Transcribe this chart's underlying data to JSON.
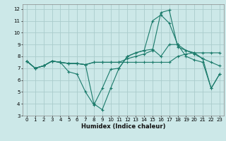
{
  "title": "",
  "xlabel": "Humidex (Indice chaleur)",
  "xlim": [
    -0.5,
    23.5
  ],
  "ylim": [
    3,
    12.4
  ],
  "yticks": [
    3,
    4,
    5,
    6,
    7,
    8,
    9,
    10,
    11,
    12
  ],
  "xticks": [
    0,
    1,
    2,
    3,
    4,
    5,
    6,
    7,
    8,
    9,
    10,
    11,
    12,
    13,
    14,
    15,
    16,
    17,
    18,
    19,
    20,
    21,
    22,
    23
  ],
  "bg_color": "#cce8e8",
  "grid_color": "#aacccc",
  "line_color": "#1a7a6a",
  "lines": [
    [
      7.6,
      7.0,
      7.2,
      7.6,
      7.5,
      7.4,
      7.4,
      7.3,
      7.5,
      7.5,
      7.5,
      7.5,
      7.5,
      7.5,
      7.5,
      7.5,
      7.5,
      7.5,
      8.0,
      8.2,
      8.3,
      8.3,
      8.3,
      8.3
    ],
    [
      7.6,
      7.0,
      7.2,
      7.6,
      7.5,
      7.4,
      7.4,
      7.3,
      7.5,
      7.5,
      7.5,
      7.5,
      7.8,
      8.0,
      8.2,
      8.5,
      11.7,
      11.9,
      8.8,
      8.5,
      8.2,
      7.8,
      7.5,
      7.2
    ],
    [
      7.6,
      7.0,
      7.2,
      7.6,
      7.5,
      6.7,
      6.5,
      5.0,
      3.9,
      5.3,
      6.9,
      7.0,
      8.0,
      8.3,
      8.5,
      11.0,
      11.5,
      10.8,
      9.0,
      8.0,
      7.7,
      7.5,
      5.3,
      6.5
    ],
    [
      7.6,
      7.0,
      7.2,
      7.6,
      7.5,
      7.4,
      7.4,
      7.3,
      4.0,
      3.5,
      5.3,
      7.0,
      8.0,
      8.3,
      8.5,
      8.6,
      8.0,
      9.0,
      9.0,
      8.5,
      8.3,
      7.8,
      5.3,
      6.5
    ]
  ]
}
